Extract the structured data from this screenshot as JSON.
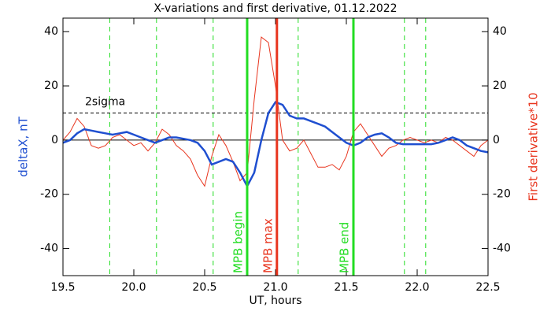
{
  "chart_data": {
    "type": "line",
    "title": "X-variations and first derivative, 01.12.2022",
    "xlabel": "UT, hours",
    "ylabel": "deltaX, nT",
    "ylabel_color": "#1f4fd0",
    "y2label": "First derivative*10",
    "y2label_color": "#e8351e",
    "xlim": [
      19.5,
      22.5
    ],
    "xticks": [
      19.5,
      {
        "value": 20,
        "label": "20.0"
      },
      20.5,
      {
        "value": 21,
        "label": "21.0"
      },
      21.5,
      {
        "value": 22,
        "label": "22.0"
      },
      22.5
    ],
    "ylim": [
      -50,
      45
    ],
    "yticks": [
      -40,
      -20,
      0,
      20,
      40
    ],
    "y2lim": [
      -50,
      45
    ],
    "y2ticks": [
      -40,
      -20,
      0,
      20,
      40
    ],
    "x": [
      19.5,
      19.55,
      19.6,
      19.65,
      19.7,
      19.75,
      19.8,
      19.85,
      19.9,
      19.95,
      20.0,
      20.05,
      20.1,
      20.15,
      20.2,
      20.25,
      20.3,
      20.35,
      20.4,
      20.45,
      20.5,
      20.55,
      20.6,
      20.65,
      20.7,
      20.75,
      20.8,
      20.85,
      20.9,
      20.95,
      21.0,
      21.05,
      21.1,
      21.15,
      21.2,
      21.25,
      21.3,
      21.35,
      21.4,
      21.45,
      21.5,
      21.55,
      21.6,
      21.65,
      21.7,
      21.75,
      21.8,
      21.85,
      21.9,
      21.95,
      22.0,
      22.05,
      22.1,
      22.15,
      22.2,
      22.25,
      22.3,
      22.35,
      22.4,
      22.45,
      22.5
    ],
    "series": [
      {
        "color": "#e8351e",
        "axis": "y2",
        "width": 1,
        "values": [
          0,
          3,
          8,
          5,
          -2,
          -3,
          -2,
          1,
          2,
          0,
          -2,
          -1,
          -4,
          -1,
          4,
          2,
          -2,
          -4,
          -7,
          -13,
          -17,
          -6,
          2,
          -2,
          -8,
          -15,
          -12,
          15,
          38,
          36,
          20,
          0,
          -4,
          -3,
          0,
          -5,
          -10,
          -10,
          -9,
          -11,
          -6,
          3,
          6,
          2,
          -2,
          -6,
          -3,
          -2,
          0,
          1,
          0,
          -1,
          0,
          -1,
          1,
          0,
          -2,
          -4,
          -6,
          -2,
          0
        ]
      },
      {
        "color": "#1f4fd0",
        "width": 2.5,
        "values": [
          -1,
          0,
          2.5,
          4,
          3.5,
          3,
          2.5,
          2,
          2.5,
          3,
          2,
          1,
          0,
          -1,
          0,
          1,
          1,
          0.5,
          0,
          -1,
          -4,
          -9,
          -8,
          -7,
          -8,
          -12,
          -17,
          -12,
          0,
          10,
          14,
          13,
          9,
          8,
          8,
          7,
          6,
          5,
          3,
          1,
          -1,
          -2,
          -1,
          1,
          2,
          2.5,
          1,
          -1,
          -1.5,
          -1.5,
          -1.5,
          -1.5,
          -1.5,
          -1,
          0,
          1,
          0,
          -2,
          -3,
          -4,
          -4.5
        ]
      }
    ],
    "zero_line": 0,
    "threshold": {
      "value": 10,
      "label": "2sigma"
    },
    "dashed_vlines": {
      "color": "#22dd22",
      "x": [
        19.83,
        20.16,
        20.56,
        21.16,
        21.91,
        22.06
      ]
    },
    "vlines": [
      {
        "x": 20.8,
        "label": "MPB begin",
        "color": "#22dd22"
      },
      {
        "x": 21.01,
        "label": "MPB max",
        "color": "#e8351e"
      },
      {
        "x": 21.55,
        "label": "MPB end",
        "color": "#22dd22"
      }
    ]
  }
}
